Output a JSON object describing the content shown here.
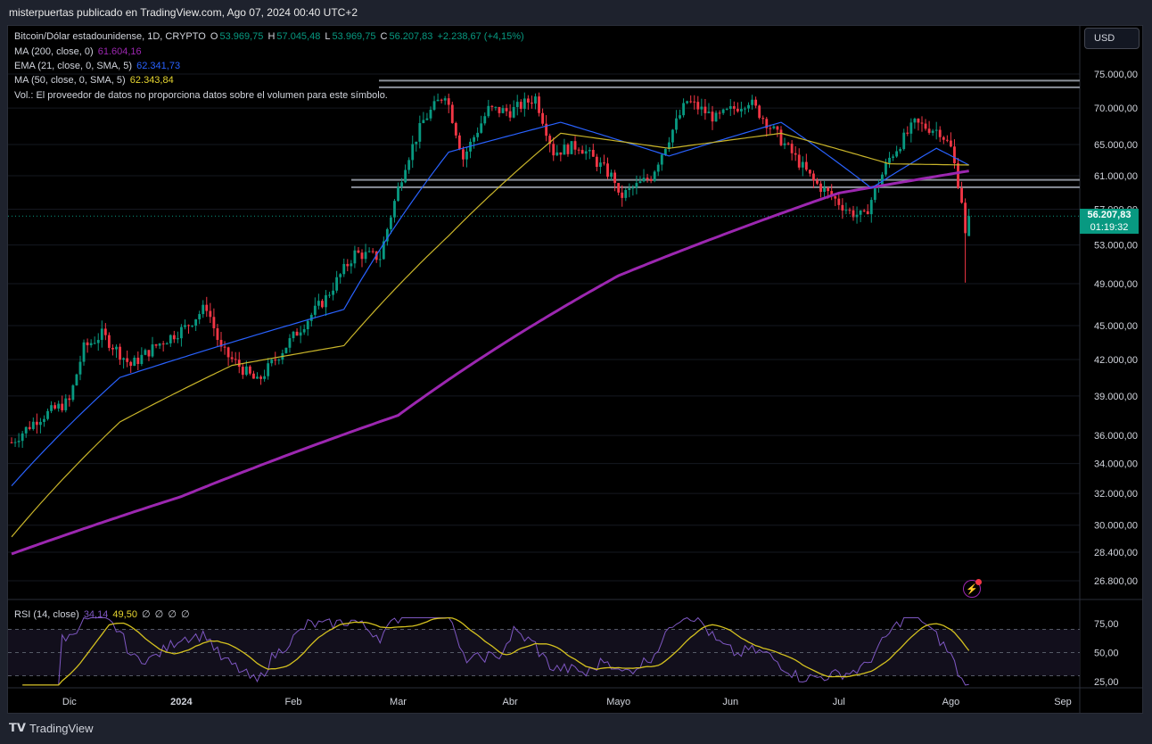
{
  "header": {
    "text": "misterpuertas publicado en TradingView.com, Ago 07, 2024 00:40 UTC+2"
  },
  "legend": {
    "symbol": "Bitcoin/Dólar estadounidense, 1D, CRYPTO",
    "o_label": "O",
    "o": "53.969,75",
    "h_label": "H",
    "h": "57.045,48",
    "l_label": "L",
    "l": "53.969,75",
    "c_label": "C",
    "c": "56.207,83",
    "change": "+2.238,67 (+4,15%)",
    "ma200_label": "MA (200, close, 0)",
    "ma200_value": "61.604,16",
    "ema21_label": "EMA (21, close, 0, SMA, 5)",
    "ema21_value": "62.341,73",
    "ma50_label": "MA (50, close, 0, SMA, 5)",
    "ma50_value": "62.343,84",
    "vol_text": "Vol.: El proveedor de datos no proporciona datos sobre el volumen para este símbolo."
  },
  "currency_button": "USD",
  "last_price": {
    "price": "56.207,83",
    "countdown": "01:19:32"
  },
  "rsi_legend": {
    "label": "RSI (14, close)",
    "v1": "34,14",
    "v2": "49,50",
    "e1": "∅",
    "e2": "∅",
    "e3": "∅",
    "e4": "∅"
  },
  "footer": {
    "brand": "TradingView"
  },
  "colors": {
    "up": "#089981",
    "down": "#f23645",
    "ma200": "#9c27b0",
    "ema21": "#2962ff",
    "ma50": "#c9b52a",
    "rsi": "#7e57c2",
    "rsi_ma": "#d4c11f"
  },
  "chart_data": {
    "type": "candlestick",
    "symbol": "BTCUSD",
    "timeframe": "1D",
    "price_axis": {
      "scale": "log",
      "ticks": [
        "75.000,00",
        "70.000,00",
        "65.000,00",
        "61.000,00",
        "57.000,00",
        "53.000,00",
        "49.000,00",
        "45.000,00",
        "42.000,00",
        "39.000,00",
        "36.000,00",
        "34.000,00",
        "32.000,00",
        "30.000,00",
        "28.400,00",
        "26.800,00"
      ]
    },
    "time_axis": {
      "ticks": [
        "Dic",
        "2024",
        "Feb",
        "Mar",
        "Abr",
        "Mayo",
        "Jun",
        "Jul",
        "Ago",
        "Sep"
      ]
    },
    "rsi_axis": {
      "ticks": [
        "75,00",
        "50,00",
        "25,00"
      ]
    },
    "horizontal_levels": [
      73000,
      74000,
      59600,
      60500
    ],
    "price_path": [
      [
        "2023-11-15",
        35500
      ],
      [
        "2023-11-22",
        37200
      ],
      [
        "2023-12-01",
        38600
      ],
      [
        "2023-12-05",
        43000
      ],
      [
        "2023-12-10",
        44200
      ],
      [
        "2023-12-18",
        41500
      ],
      [
        "2023-12-25",
        43200
      ],
      [
        "2024-01-02",
        44800
      ],
      [
        "2024-01-08",
        46800
      ],
      [
        "2024-01-12",
        42800
      ],
      [
        "2024-01-22",
        40100
      ],
      [
        "2024-01-30",
        43200
      ],
      [
        "2024-02-10",
        47600
      ],
      [
        "2024-02-18",
        52100
      ],
      [
        "2024-02-25",
        51700
      ],
      [
        "2024-03-03",
        62500
      ],
      [
        "2024-03-08",
        68200
      ],
      [
        "2024-03-14",
        72200
      ],
      [
        "2024-03-19",
        63200
      ],
      [
        "2024-03-26",
        69800
      ],
      [
        "2024-04-01",
        69500
      ],
      [
        "2024-04-08",
        71500
      ],
      [
        "2024-04-13",
        64000
      ],
      [
        "2024-04-20",
        64900
      ],
      [
        "2024-04-30",
        60500
      ],
      [
        "2024-05-01",
        58300
      ],
      [
        "2024-05-10",
        60900
      ],
      [
        "2024-05-20",
        71000
      ],
      [
        "2024-05-28",
        68500
      ],
      [
        "2024-06-06",
        71100
      ],
      [
        "2024-06-14",
        66200
      ],
      [
        "2024-06-24",
        60300
      ],
      [
        "2024-07-04",
        56700
      ],
      [
        "2024-07-08",
        56100
      ],
      [
        "2024-07-15",
        63200
      ],
      [
        "2024-07-22",
        67800
      ],
      [
        "2024-07-29",
        66800
      ],
      [
        "2024-08-01",
        64500
      ],
      [
        "2024-08-04",
        58100
      ],
      [
        "2024-08-05",
        53970
      ],
      [
        "2024-08-06",
        56207
      ]
    ],
    "series": [
      {
        "name": "MA (200, close, 0)",
        "last": 61604.16,
        "path": [
          [
            "2023-11-15",
            28300
          ],
          [
            "2024-01-01",
            31800
          ],
          [
            "2024-03-01",
            37500
          ],
          [
            "2024-05-01",
            49800
          ],
          [
            "2024-07-01",
            58900
          ],
          [
            "2024-08-06",
            61604
          ]
        ]
      },
      {
        "name": "EMA (21, close, 0, SMA, 5)",
        "last": 62341.73,
        "path": [
          [
            "2023-11-15",
            32500
          ],
          [
            "2023-12-15",
            40500
          ],
          [
            "2024-01-15",
            43500
          ],
          [
            "2024-02-15",
            46500
          ],
          [
            "2024-03-15",
            64000
          ],
          [
            "2024-04-15",
            68000
          ],
          [
            "2024-05-15",
            63500
          ],
          [
            "2024-06-15",
            68000
          ],
          [
            "2024-07-10",
            59500
          ],
          [
            "2024-07-28",
            64500
          ],
          [
            "2024-08-06",
            62342
          ]
        ]
      },
      {
        "name": "MA (50, close, 0, SMA, 5)",
        "last": 62343.84,
        "path": [
          [
            "2023-11-15",
            29300
          ],
          [
            "2023-12-15",
            37000
          ],
          [
            "2024-01-15",
            41500
          ],
          [
            "2024-02-15",
            43200
          ],
          [
            "2024-03-15",
            54000
          ],
          [
            "2024-04-15",
            66500
          ],
          [
            "2024-05-15",
            64500
          ],
          [
            "2024-06-15",
            66500
          ],
          [
            "2024-07-15",
            62500
          ],
          [
            "2024-08-06",
            62344
          ]
        ]
      }
    ]
  }
}
